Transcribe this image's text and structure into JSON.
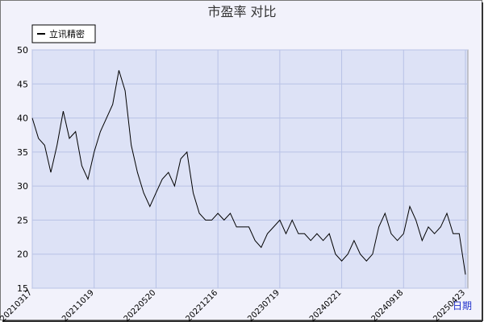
{
  "chart_data": {
    "type": "line",
    "title": "市盈率 对比",
    "x_label": "日期",
    "categories": [
      "20210317",
      null,
      null,
      null,
      null,
      null,
      null,
      null,
      null,
      null,
      "20211019",
      null,
      null,
      null,
      null,
      null,
      null,
      null,
      null,
      null,
      "20220520",
      null,
      null,
      null,
      null,
      null,
      null,
      null,
      null,
      null,
      "20221216",
      null,
      null,
      null,
      null,
      null,
      null,
      null,
      null,
      null,
      "20230719",
      null,
      null,
      null,
      null,
      null,
      null,
      null,
      null,
      null,
      "20240221",
      null,
      null,
      null,
      null,
      null,
      null,
      null,
      null,
      null,
      "20240918",
      null,
      null,
      null,
      null,
      null,
      null,
      null,
      null,
      null,
      "20250423"
    ],
    "series": [
      {
        "name": "立讯精密",
        "color": "#000000",
        "values": [
          40,
          37,
          36,
          32,
          36,
          41,
          37,
          38,
          33,
          31,
          35,
          38,
          40,
          42,
          47,
          44,
          36,
          32,
          29,
          27,
          29,
          31,
          32,
          30,
          34,
          35,
          29,
          26,
          25,
          25,
          26,
          25,
          26,
          24,
          24,
          24,
          22,
          21,
          23,
          24,
          25,
          23,
          25,
          23,
          23,
          22,
          23,
          22,
          23,
          20,
          19,
          20,
          22,
          20,
          19,
          20,
          24,
          26,
          23,
          22,
          23,
          27,
          25,
          22,
          24,
          23,
          24,
          26,
          23,
          23,
          17
        ]
      }
    ],
    "ylim": [
      15,
      50
    ],
    "yticks": [
      15,
      20,
      25,
      30,
      35,
      40,
      45,
      50
    ],
    "grid": true,
    "legend": "top-left"
  }
}
